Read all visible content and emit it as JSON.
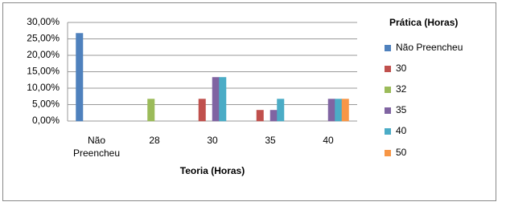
{
  "chart_data": {
    "type": "bar",
    "categories": [
      "Não Preencheu",
      "28",
      "30",
      "35",
      "40"
    ],
    "x_label": "Teoria (Horas)",
    "legend_title": "Prática (Horas)",
    "legend": "right",
    "grid": true,
    "ylim": [
      0,
      30
    ],
    "yticks": [
      {
        "value": 0,
        "label": "0,00%"
      },
      {
        "value": 5,
        "label": "5,00%"
      },
      {
        "value": 10,
        "label": "10,00%"
      },
      {
        "value": 15,
        "label": "15,00%"
      },
      {
        "value": 20,
        "label": "20,00%"
      },
      {
        "value": 25,
        "label": "25,00%"
      },
      {
        "value": 30,
        "label": "30,00%"
      }
    ],
    "series": [
      {
        "name": "Não Preencheu",
        "color": "#4f81bd",
        "values": [
          26.7,
          0,
          0,
          0,
          0
        ]
      },
      {
        "name": "30",
        "color": "#c0504d",
        "values": [
          0,
          0,
          6.7,
          3.3,
          0
        ]
      },
      {
        "name": "32",
        "color": "#9bbb59",
        "values": [
          0,
          6.7,
          0,
          0,
          0
        ]
      },
      {
        "name": "35",
        "color": "#8064a2",
        "values": [
          0,
          0,
          13.3,
          3.3,
          6.7
        ]
      },
      {
        "name": "40",
        "color": "#4bacc6",
        "values": [
          0,
          0,
          13.3,
          6.7,
          6.7
        ]
      },
      {
        "name": "50",
        "color": "#f79646",
        "values": [
          0,
          0,
          0,
          0,
          6.7
        ]
      }
    ]
  }
}
